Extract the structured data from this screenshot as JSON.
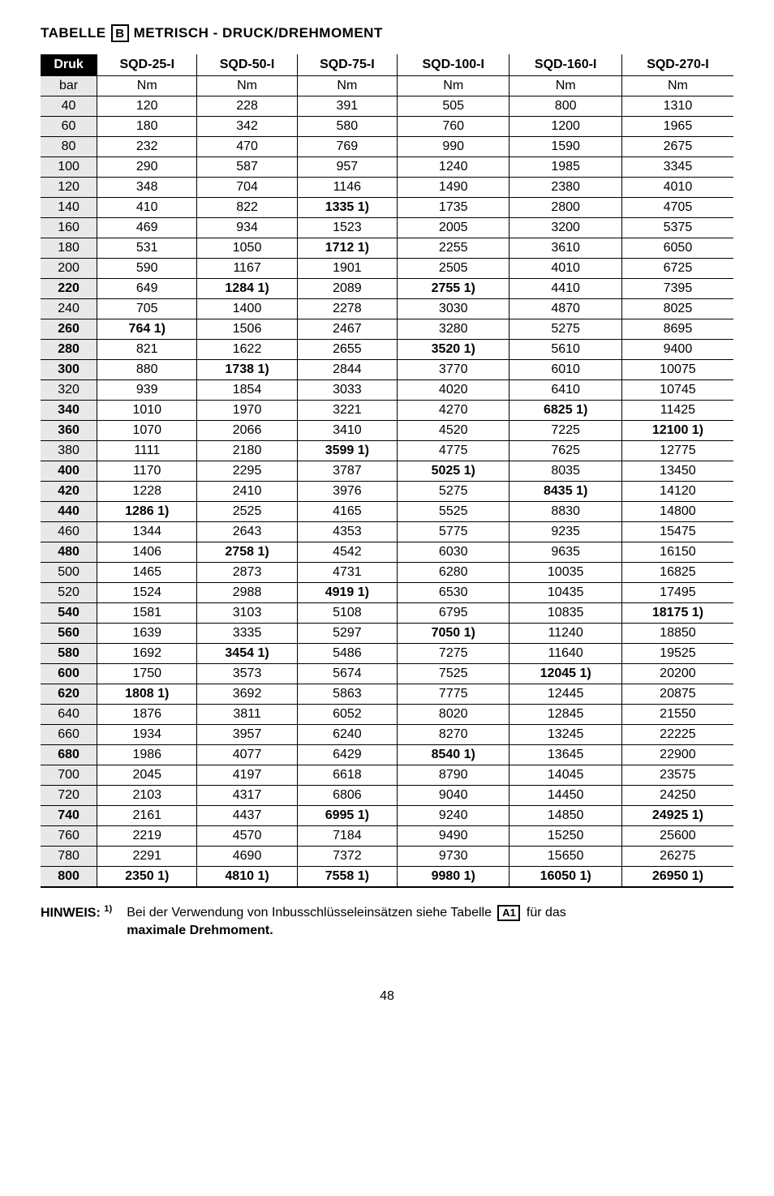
{
  "title": {
    "prefix": "TABELLE",
    "boxed": "B",
    "suffix": "METRISCH - DRUCK/DREHMOMENT"
  },
  "table": {
    "columns": [
      "Druk",
      "SQD-25-I",
      "SQD-50-I",
      "SQD-75-I",
      "SQD-100-I",
      "SQD-160-I",
      "SQD-270-I"
    ],
    "units_row": [
      "bar",
      "Nm",
      "Nm",
      "Nm",
      "Nm",
      "Nm",
      "Nm"
    ],
    "rows": [
      {
        "druk": "40",
        "druk_bold": false,
        "cells": [
          {
            "v": "120"
          },
          {
            "v": "228"
          },
          {
            "v": "391"
          },
          {
            "v": "505"
          },
          {
            "v": "800"
          },
          {
            "v": "1310"
          }
        ]
      },
      {
        "druk": "60",
        "druk_bold": false,
        "cells": [
          {
            "v": "180"
          },
          {
            "v": "342"
          },
          {
            "v": "580"
          },
          {
            "v": "760"
          },
          {
            "v": "1200"
          },
          {
            "v": "1965"
          }
        ]
      },
      {
        "druk": "80",
        "druk_bold": false,
        "cells": [
          {
            "v": "232"
          },
          {
            "v": "470"
          },
          {
            "v": "769"
          },
          {
            "v": "990"
          },
          {
            "v": "1590"
          },
          {
            "v": "2675"
          }
        ]
      },
      {
        "druk": "100",
        "druk_bold": false,
        "cells": [
          {
            "v": "290"
          },
          {
            "v": "587"
          },
          {
            "v": "957"
          },
          {
            "v": "1240"
          },
          {
            "v": "1985"
          },
          {
            "v": "3345"
          }
        ]
      },
      {
        "druk": "120",
        "druk_bold": false,
        "cells": [
          {
            "v": "348"
          },
          {
            "v": "704"
          },
          {
            "v": "1146"
          },
          {
            "v": "1490"
          },
          {
            "v": "2380"
          },
          {
            "v": "4010"
          }
        ]
      },
      {
        "druk": "140",
        "druk_bold": false,
        "cells": [
          {
            "v": "410"
          },
          {
            "v": "822"
          },
          {
            "v": "1335",
            "sup": "1)",
            "bold": true
          },
          {
            "v": "1735"
          },
          {
            "v": "2800"
          },
          {
            "v": "4705"
          }
        ]
      },
      {
        "druk": "160",
        "druk_bold": false,
        "cells": [
          {
            "v": "469"
          },
          {
            "v": "934"
          },
          {
            "v": "1523"
          },
          {
            "v": "2005"
          },
          {
            "v": "3200"
          },
          {
            "v": "5375"
          }
        ]
      },
      {
        "druk": "180",
        "druk_bold": false,
        "cells": [
          {
            "v": "531"
          },
          {
            "v": "1050"
          },
          {
            "v": "1712",
            "sup": "1)",
            "bold": true
          },
          {
            "v": "2255"
          },
          {
            "v": "3610"
          },
          {
            "v": "6050"
          }
        ]
      },
      {
        "druk": "200",
        "druk_bold": false,
        "cells": [
          {
            "v": "590"
          },
          {
            "v": "1167"
          },
          {
            "v": "1901"
          },
          {
            "v": "2505"
          },
          {
            "v": "4010"
          },
          {
            "v": "6725"
          }
        ]
      },
      {
        "druk": "220",
        "druk_bold": true,
        "cells": [
          {
            "v": "649"
          },
          {
            "v": "1284",
            "sup": "1)",
            "bold": true
          },
          {
            "v": "2089"
          },
          {
            "v": "2755",
            "sup": "1)",
            "bold": true
          },
          {
            "v": "4410"
          },
          {
            "v": "7395"
          }
        ]
      },
      {
        "druk": "240",
        "druk_bold": false,
        "cells": [
          {
            "v": "705"
          },
          {
            "v": "1400"
          },
          {
            "v": "2278"
          },
          {
            "v": "3030"
          },
          {
            "v": "4870"
          },
          {
            "v": "8025"
          }
        ]
      },
      {
        "druk": "260",
        "druk_bold": true,
        "cells": [
          {
            "v": "764",
            "sup": "1)",
            "bold": true
          },
          {
            "v": "1506"
          },
          {
            "v": "2467"
          },
          {
            "v": "3280"
          },
          {
            "v": "5275"
          },
          {
            "v": "8695"
          }
        ]
      },
      {
        "druk": "280",
        "druk_bold": true,
        "cells": [
          {
            "v": "821"
          },
          {
            "v": "1622"
          },
          {
            "v": "2655"
          },
          {
            "v": "3520",
            "sup": "1)",
            "bold": true
          },
          {
            "v": "5610"
          },
          {
            "v": "9400"
          }
        ]
      },
      {
        "druk": "300",
        "druk_bold": true,
        "cells": [
          {
            "v": "880"
          },
          {
            "v": "1738",
            "sup": "1)",
            "bold": true
          },
          {
            "v": "2844"
          },
          {
            "v": "3770"
          },
          {
            "v": "6010"
          },
          {
            "v": "10075"
          }
        ]
      },
      {
        "druk": "320",
        "druk_bold": false,
        "cells": [
          {
            "v": "939"
          },
          {
            "v": "1854"
          },
          {
            "v": "3033"
          },
          {
            "v": "4020"
          },
          {
            "v": "6410"
          },
          {
            "v": "10745"
          }
        ]
      },
      {
        "druk": "340",
        "druk_bold": true,
        "cells": [
          {
            "v": "1010"
          },
          {
            "v": "1970"
          },
          {
            "v": "3221"
          },
          {
            "v": "4270"
          },
          {
            "v": "6825",
            "sup": "1)",
            "bold": true
          },
          {
            "v": "11425"
          }
        ]
      },
      {
        "druk": "360",
        "druk_bold": true,
        "cells": [
          {
            "v": "1070"
          },
          {
            "v": "2066"
          },
          {
            "v": "3410"
          },
          {
            "v": "4520"
          },
          {
            "v": "7225"
          },
          {
            "v": "12100",
            "sup": "1)",
            "bold": true
          }
        ]
      },
      {
        "druk": "380",
        "druk_bold": false,
        "cells": [
          {
            "v": "1111"
          },
          {
            "v": "2180"
          },
          {
            "v": "3599",
            "sup": "1)",
            "bold": true
          },
          {
            "v": "4775"
          },
          {
            "v": "7625"
          },
          {
            "v": "12775"
          }
        ]
      },
      {
        "druk": "400",
        "druk_bold": true,
        "cells": [
          {
            "v": "1170"
          },
          {
            "v": "2295"
          },
          {
            "v": "3787"
          },
          {
            "v": "5025",
            "sup": "1)",
            "bold": true
          },
          {
            "v": "8035"
          },
          {
            "v": "13450"
          }
        ]
      },
      {
        "druk": "420",
        "druk_bold": true,
        "cells": [
          {
            "v": "1228"
          },
          {
            "v": "2410"
          },
          {
            "v": "3976"
          },
          {
            "v": "5275"
          },
          {
            "v": "8435",
            "sup": "1)",
            "bold": true
          },
          {
            "v": "14120"
          }
        ]
      },
      {
        "druk": "440",
        "druk_bold": true,
        "cells": [
          {
            "v": "1286",
            "sup": "1)",
            "bold": true
          },
          {
            "v": "2525"
          },
          {
            "v": "4165"
          },
          {
            "v": "5525"
          },
          {
            "v": "8830"
          },
          {
            "v": "14800"
          }
        ]
      },
      {
        "druk": "460",
        "druk_bold": false,
        "cells": [
          {
            "v": "1344"
          },
          {
            "v": "2643"
          },
          {
            "v": "4353"
          },
          {
            "v": "5775"
          },
          {
            "v": "9235"
          },
          {
            "v": "15475"
          }
        ]
      },
      {
        "druk": "480",
        "druk_bold": true,
        "cells": [
          {
            "v": "1406"
          },
          {
            "v": "2758",
            "sup": "1)",
            "bold": true
          },
          {
            "v": "4542"
          },
          {
            "v": "6030"
          },
          {
            "v": "9635"
          },
          {
            "v": "16150"
          }
        ]
      },
      {
        "druk": "500",
        "druk_bold": false,
        "cells": [
          {
            "v": "1465"
          },
          {
            "v": "2873"
          },
          {
            "v": "4731"
          },
          {
            "v": "6280"
          },
          {
            "v": "10035"
          },
          {
            "v": "16825"
          }
        ]
      },
      {
        "druk": "520",
        "druk_bold": false,
        "cells": [
          {
            "v": "1524"
          },
          {
            "v": "2988"
          },
          {
            "v": "4919",
            "sup": "1)",
            "bold": true
          },
          {
            "v": "6530"
          },
          {
            "v": "10435"
          },
          {
            "v": "17495"
          }
        ]
      },
      {
        "druk": "540",
        "druk_bold": true,
        "cells": [
          {
            "v": "1581"
          },
          {
            "v": "3103"
          },
          {
            "v": "5108"
          },
          {
            "v": "6795"
          },
          {
            "v": "10835"
          },
          {
            "v": "18175",
            "sup": "1)",
            "bold": true
          }
        ]
      },
      {
        "druk": "560",
        "druk_bold": true,
        "cells": [
          {
            "v": "1639"
          },
          {
            "v": "3335"
          },
          {
            "v": "5297"
          },
          {
            "v": "7050",
            "sup": "1)",
            "bold": true
          },
          {
            "v": "11240"
          },
          {
            "v": "18850"
          }
        ]
      },
      {
        "druk": "580",
        "druk_bold": true,
        "cells": [
          {
            "v": "1692"
          },
          {
            "v": "3454",
            "sup": "1)",
            "bold": true
          },
          {
            "v": "5486"
          },
          {
            "v": "7275"
          },
          {
            "v": "11640"
          },
          {
            "v": "19525"
          }
        ]
      },
      {
        "druk": "600",
        "druk_bold": true,
        "cells": [
          {
            "v": "1750"
          },
          {
            "v": "3573"
          },
          {
            "v": "5674"
          },
          {
            "v": "7525"
          },
          {
            "v": "12045",
            "sup": "1)",
            "bold": true
          },
          {
            "v": "20200"
          }
        ]
      },
      {
        "druk": "620",
        "druk_bold": true,
        "cells": [
          {
            "v": "1808",
            "sup": "1)",
            "bold": true
          },
          {
            "v": "3692"
          },
          {
            "v": "5863"
          },
          {
            "v": "7775"
          },
          {
            "v": "12445"
          },
          {
            "v": "20875"
          }
        ]
      },
      {
        "druk": "640",
        "druk_bold": false,
        "cells": [
          {
            "v": "1876"
          },
          {
            "v": "3811"
          },
          {
            "v": "6052"
          },
          {
            "v": "8020"
          },
          {
            "v": "12845"
          },
          {
            "v": "21550"
          }
        ]
      },
      {
        "druk": "660",
        "druk_bold": false,
        "cells": [
          {
            "v": "1934"
          },
          {
            "v": "3957"
          },
          {
            "v": "6240"
          },
          {
            "v": "8270"
          },
          {
            "v": "13245"
          },
          {
            "v": "22225"
          }
        ]
      },
      {
        "druk": "680",
        "druk_bold": true,
        "cells": [
          {
            "v": "1986"
          },
          {
            "v": "4077"
          },
          {
            "v": "6429"
          },
          {
            "v": "8540",
            "sup": "1)",
            "bold": true
          },
          {
            "v": "13645"
          },
          {
            "v": "22900"
          }
        ]
      },
      {
        "druk": "700",
        "druk_bold": false,
        "cells": [
          {
            "v": "2045"
          },
          {
            "v": "4197"
          },
          {
            "v": "6618"
          },
          {
            "v": "8790"
          },
          {
            "v": "14045"
          },
          {
            "v": "23575"
          }
        ]
      },
      {
        "druk": "720",
        "druk_bold": false,
        "cells": [
          {
            "v": "2103"
          },
          {
            "v": "4317"
          },
          {
            "v": "6806"
          },
          {
            "v": "9040"
          },
          {
            "v": "14450"
          },
          {
            "v": "24250"
          }
        ]
      },
      {
        "druk": "740",
        "druk_bold": true,
        "cells": [
          {
            "v": "2161"
          },
          {
            "v": "4437"
          },
          {
            "v": "6995",
            "sup": "1)",
            "bold": true
          },
          {
            "v": "9240"
          },
          {
            "v": "14850"
          },
          {
            "v": "24925",
            "sup": "1)",
            "bold": true
          }
        ]
      },
      {
        "druk": "760",
        "druk_bold": false,
        "cells": [
          {
            "v": "2219"
          },
          {
            "v": "4570"
          },
          {
            "v": "7184"
          },
          {
            "v": "9490"
          },
          {
            "v": "15250"
          },
          {
            "v": "25600"
          }
        ]
      },
      {
        "druk": "780",
        "druk_bold": false,
        "cells": [
          {
            "v": "2291"
          },
          {
            "v": "4690"
          },
          {
            "v": "7372"
          },
          {
            "v": "9730"
          },
          {
            "v": "15650"
          },
          {
            "v": "26275"
          }
        ]
      },
      {
        "druk": "800",
        "druk_bold": true,
        "cells": [
          {
            "v": "2350",
            "sup": "1)",
            "bold": true
          },
          {
            "v": "4810",
            "sup": "1)",
            "bold": true
          },
          {
            "v": "7558",
            "sup": "1)",
            "bold": true
          },
          {
            "v": "9980",
            "sup": "1)",
            "bold": true
          },
          {
            "v": "16050",
            "sup": "1)",
            "bold": true
          },
          {
            "v": "26950",
            "sup": "1)",
            "bold": true
          }
        ]
      }
    ]
  },
  "hinweis": {
    "label": "HINWEIS:",
    "label_sup": "1)",
    "text_before": "Bei der Verwendung von Inbusschlüsseleinsätzen siehe Tabelle",
    "boxed": "A1",
    "text_after": "für das",
    "bold_line": "maximale Drehmoment."
  },
  "page_number": "48"
}
